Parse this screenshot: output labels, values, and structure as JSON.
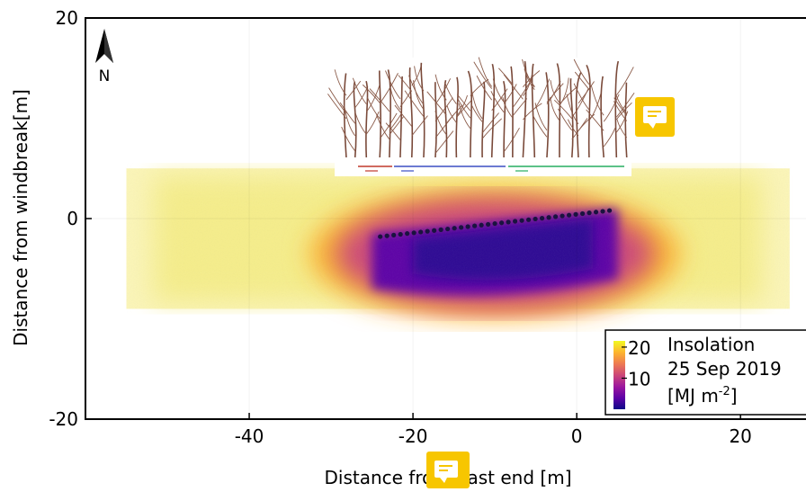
{
  "chart_data": {
    "type": "heatmap",
    "xlabel": "Distance from east end [m]",
    "ylabel": "Distance from windbreak[m]",
    "xlim": [
      -60,
      28
    ],
    "ylim": [
      -20,
      20
    ],
    "x_ticks": [
      -40,
      -20,
      0,
      20
    ],
    "y_ticks": [
      -20,
      0,
      20
    ],
    "north_label": "N",
    "colorbar": {
      "ticks": [
        10,
        20
      ],
      "range": [
        0,
        22
      ],
      "colormap": "plasma",
      "label_lines": [
        "Insolation",
        "25 Sep 2019",
        "[MJ m",
        "-2",
        "]"
      ]
    },
    "extent": {
      "x": [
        -55,
        26
      ],
      "y": [
        -9,
        5
      ]
    },
    "shadow_core": {
      "x": [
        -25,
        5
      ],
      "y": [
        -8,
        1
      ]
    },
    "tree_row": {
      "start": [
        -24,
        -1.8
      ],
      "end": [
        4,
        0.8
      ]
    },
    "legend_segments": [
      {
        "color": "#c0392b"
      },
      {
        "color": "#3b4fc4"
      },
      {
        "color": "#27ae60"
      }
    ]
  },
  "colors": {
    "accent": "#f7c600",
    "plasma": [
      "#0d0887",
      "#5c01a6",
      "#9c179e",
      "#cc4778",
      "#ed7953",
      "#fdb42f",
      "#f0f921"
    ]
  }
}
